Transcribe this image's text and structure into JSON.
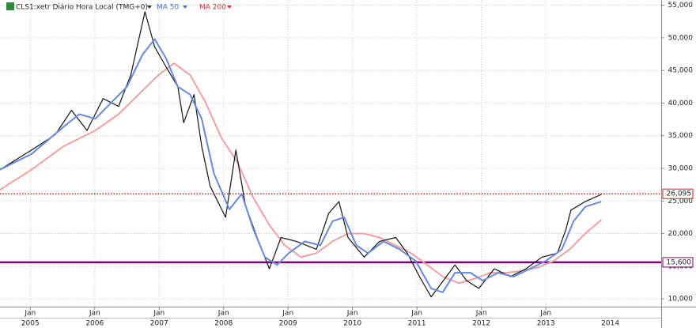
{
  "chart_data": {
    "type": "line",
    "xlim": [
      2004.53,
      2014.79
    ],
    "ylim": [
      8800,
      55800
    ],
    "yticks": [
      {
        "value": 10000,
        "label": "10,000"
      },
      {
        "value": 15000,
        "label": "15,000"
      },
      {
        "value": 20000,
        "label": "20,000"
      },
      {
        "value": 25000,
        "label": "25,000"
      },
      {
        "value": 30000,
        "label": "30,000"
      },
      {
        "value": 35000,
        "label": "35,000"
      },
      {
        "value": 40000,
        "label": "40,000"
      },
      {
        "value": 45000,
        "label": "45,000"
      },
      {
        "value": 50000,
        "label": "50,000"
      },
      {
        "value": 55000,
        "label": "55,000"
      }
    ],
    "xticks": [
      {
        "value": 2005,
        "label": "Jan"
      },
      {
        "value": 2006,
        "label": "Jan"
      },
      {
        "value": 2007,
        "label": "Jan"
      },
      {
        "value": 2008,
        "label": "Jan"
      },
      {
        "value": 2009,
        "label": "Jan"
      },
      {
        "value": 2010,
        "label": "Jan"
      },
      {
        "value": 2011,
        "label": "Jan"
      },
      {
        "value": 2012,
        "label": "Jan"
      },
      {
        "value": 2013,
        "label": "Jan"
      }
    ],
    "year_labels": [
      2005,
      2006,
      2007,
      2008,
      2009,
      2010,
      2011,
      2012,
      2013,
      2014
    ],
    "grid": true,
    "series": [
      {
        "name": "CLS1:xetr Diário Hora Local (TMG+0)",
        "color": "#111111",
        "x": [
          2004.53,
          2005.02,
          2005.39,
          2005.64,
          2005.88,
          2006.13,
          2006.37,
          2006.56,
          2006.78,
          2006.93,
          2007.11,
          2007.29,
          2007.38,
          2007.54,
          2007.66,
          2007.79,
          2008.03,
          2008.19,
          2008.34,
          2008.52,
          2008.71,
          2008.89,
          2009.13,
          2009.44,
          2009.63,
          2009.79,
          2009.93,
          2010.18,
          2010.42,
          2010.67,
          2010.85,
          2011.04,
          2011.22,
          2011.41,
          2011.59,
          2011.77,
          2011.96,
          2012.2,
          2012.45,
          2012.69,
          2012.94,
          2013.18,
          2013.31,
          2013.39,
          2013.61,
          2013.86
        ],
        "values": [
          29800,
          32800,
          35200,
          38900,
          35800,
          40700,
          39500,
          44300,
          54000,
          48600,
          45500,
          42500,
          37000,
          41300,
          33400,
          27300,
          22500,
          32800,
          24300,
          19400,
          14600,
          19400,
          18800,
          17600,
          23100,
          24900,
          19400,
          16400,
          18800,
          19400,
          17000,
          13400,
          10300,
          12800,
          15200,
          12800,
          11600,
          14600,
          13400,
          14600,
          16400,
          17000,
          20600,
          23600,
          24900,
          26000
        ]
      },
      {
        "name": "MA 50",
        "color": "#6688dd",
        "x": [
          2004.53,
          2005.02,
          2005.52,
          2005.76,
          2006.01,
          2006.25,
          2006.5,
          2006.74,
          2006.93,
          2007.11,
          2007.29,
          2007.48,
          2007.66,
          2007.85,
          2008.09,
          2008.28,
          2008.46,
          2008.64,
          2008.83,
          2009.01,
          2009.26,
          2009.5,
          2009.69,
          2009.87,
          2010.06,
          2010.24,
          2010.48,
          2010.73,
          2010.98,
          2011.22,
          2011.4,
          2011.59,
          2011.83,
          2012.02,
          2012.26,
          2012.5,
          2012.75,
          2013.0,
          2013.25,
          2013.43,
          2013.61,
          2013.86
        ],
        "values": [
          29800,
          32200,
          36400,
          38300,
          37600,
          40000,
          42500,
          47400,
          49800,
          46800,
          42500,
          41300,
          37600,
          29200,
          23700,
          26100,
          20700,
          16400,
          15200,
          17000,
          18800,
          18200,
          21900,
          22500,
          18200,
          17000,
          18800,
          17600,
          15800,
          11600,
          11000,
          14000,
          14000,
          12800,
          14000,
          13400,
          14600,
          15800,
          17600,
          21900,
          24100,
          24900
        ]
      },
      {
        "name": "MA 200",
        "color": "#f0a0a0",
        "x": [
          2004.53,
          2005.02,
          2005.52,
          2006.01,
          2006.37,
          2006.68,
          2006.99,
          2007.23,
          2007.48,
          2007.72,
          2007.97,
          2008.21,
          2008.46,
          2008.71,
          2008.95,
          2009.2,
          2009.44,
          2009.69,
          2009.93,
          2010.18,
          2010.42,
          2010.67,
          2010.91,
          2011.16,
          2011.4,
          2011.65,
          2011.9,
          2012.14,
          2012.39,
          2012.63,
          2012.88,
          2013.12,
          2013.37,
          2013.61,
          2013.86
        ],
        "values": [
          26700,
          29800,
          33400,
          35800,
          38300,
          41300,
          44300,
          46100,
          44300,
          40100,
          34600,
          31000,
          25500,
          21300,
          18200,
          16400,
          17000,
          18800,
          20000,
          20000,
          19400,
          18200,
          17000,
          15200,
          13400,
          12400,
          13100,
          14000,
          14000,
          14300,
          14800,
          15800,
          17600,
          20000,
          22100
        ]
      }
    ],
    "reference_lines": [
      {
        "value": 26095,
        "label": "26,095",
        "color": "#cc2222",
        "style": "dotted"
      },
      {
        "value": 15600,
        "label": "15,600",
        "color": "#800080",
        "style": "solid"
      }
    ]
  }
}
